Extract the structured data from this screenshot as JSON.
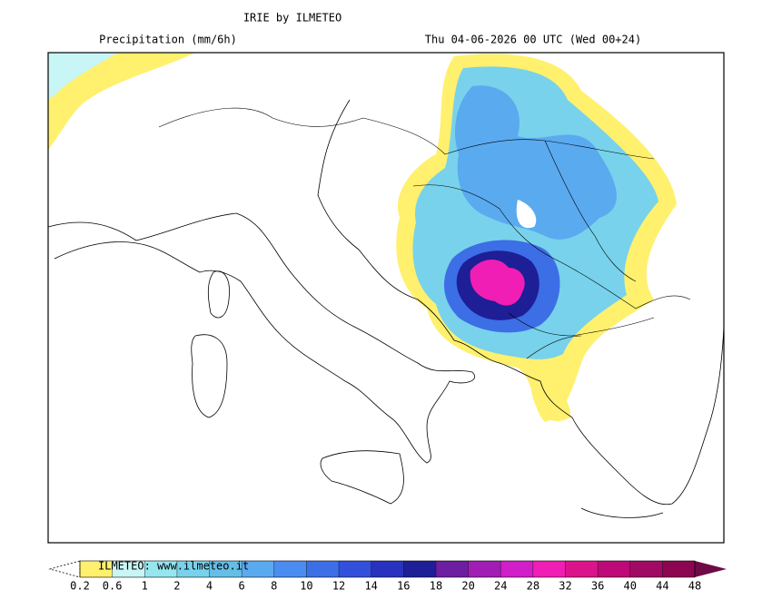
{
  "header": {
    "title": "IRIE by ILMETEO",
    "field": "Precipitation (mm/6h)",
    "valid_time": "Thu 04-06-2026 00 UTC (Wed 00+24)"
  },
  "legend": {
    "credit": "ILMETEO: www.ilmeteo.it",
    "ticks": [
      0.2,
      0.6,
      1,
      2,
      4,
      6,
      8,
      10,
      12,
      14,
      16,
      18,
      20,
      24,
      28,
      32,
      36,
      40,
      44,
      48
    ],
    "colors": [
      "#fff06e",
      "#c8f5f5",
      "#96e6f0",
      "#78d2eb",
      "#64bee6",
      "#5aaaf0",
      "#4b8cf0",
      "#3c6ee6",
      "#3250dc",
      "#2832be",
      "#1e1e96",
      "#6e1ea0",
      "#a01eb4",
      "#d21ec8",
      "#f01eb4",
      "#dc148c",
      "#be0a78",
      "#a00a64",
      "#8c0550"
    ],
    "under_color": "#ffffff",
    "over_color": "#6e0a46"
  }
}
